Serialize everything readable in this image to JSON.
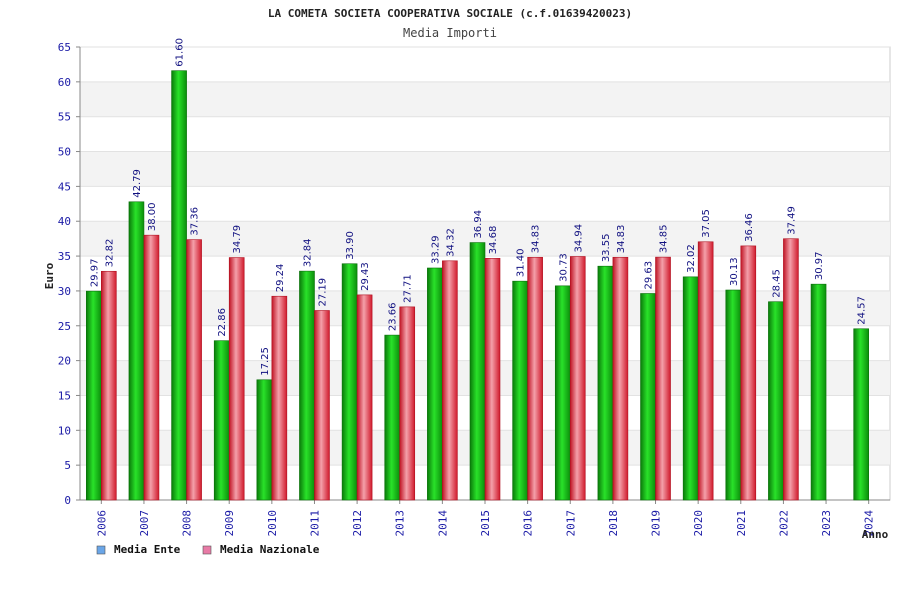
{
  "chart_data": {
    "type": "bar",
    "title": "LA COMETA SOCIETA COOPERATIVA SOCIALE (c.f.01639420023)",
    "subtitle": "Media Importi",
    "ylabel": "Euro",
    "xlabel": "Anno",
    "ylim": [
      0,
      65
    ],
    "yticks": [
      0,
      5,
      10,
      15,
      20,
      25,
      30,
      35,
      40,
      45,
      50,
      55,
      60,
      65
    ],
    "grid": true,
    "legend_position": "bottom-left",
    "categories": [
      "2006",
      "2007",
      "2008",
      "2009",
      "2010",
      "2011",
      "2012",
      "2013",
      "2014",
      "2015",
      "2016",
      "2017",
      "2018",
      "2019",
      "2020",
      "2021",
      "2022",
      "2023",
      "2024"
    ],
    "series": [
      {
        "name": "Media Ente",
        "color": "#11b811",
        "legend_color": "#6aa6e8",
        "values": [
          29.97,
          42.79,
          61.6,
          22.86,
          17.25,
          32.84,
          33.9,
          23.66,
          33.29,
          36.94,
          31.4,
          30.73,
          33.55,
          29.63,
          32.02,
          30.13,
          28.45,
          30.97,
          24.57
        ],
        "labels": [
          "29.97",
          "42.79",
          "61.60",
          "22.86",
          "17.25",
          "32.84",
          "33.90",
          "23.66",
          "33.29",
          "36.94",
          "31.40",
          "30.73",
          "33.55",
          "29.63",
          "32.02",
          "30.13",
          "28.45",
          "30.97",
          "24.57"
        ]
      },
      {
        "name": "Media Nazionale",
        "color": "#e8283a",
        "legend_color": "#e87aa6",
        "values": [
          32.82,
          38.0,
          37.36,
          34.79,
          29.24,
          27.19,
          29.43,
          27.71,
          34.32,
          34.68,
          34.83,
          34.94,
          34.83,
          34.85,
          37.05,
          36.46,
          37.49,
          null,
          null
        ],
        "labels": [
          "32.82",
          "38.00",
          "37.36",
          "34.79",
          "29.24",
          "27.19",
          "29.43",
          "27.71",
          "34.32",
          "34.68",
          "34.83",
          "34.94",
          "34.83",
          "34.85",
          "37.05",
          "36.46",
          "37.49",
          null,
          null
        ]
      }
    ]
  }
}
